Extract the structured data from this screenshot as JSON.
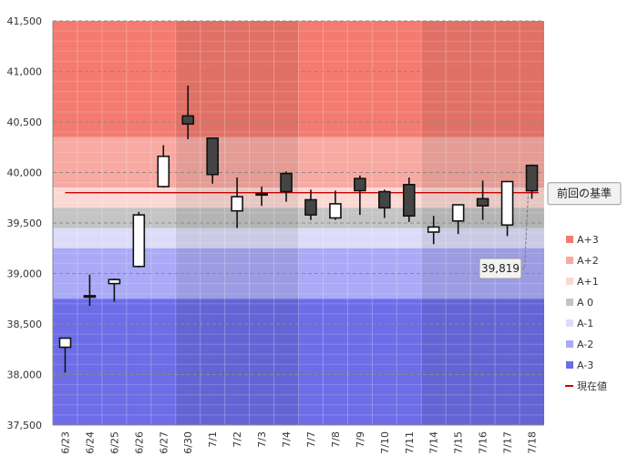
{
  "chart_data": {
    "type": "candlestick",
    "title": "",
    "xlabel": "",
    "ylabel": "",
    "ylim": [
      37500,
      41500
    ],
    "yticks": [
      37500,
      38000,
      38500,
      39000,
      39500,
      40000,
      40500,
      41000,
      41500
    ],
    "ytick_labels": [
      "37,500",
      "38,000",
      "38,500",
      "39,000",
      "39,500",
      "40,000",
      "40,500",
      "41,000",
      "41,500"
    ],
    "categories": [
      "6/23",
      "6/24",
      "6/25",
      "6/26",
      "6/27",
      "6/30",
      "7/1",
      "7/2",
      "7/3",
      "7/4",
      "7/7",
      "7/8",
      "7/9",
      "7/10",
      "7/11",
      "7/14",
      "7/15",
      "7/16",
      "7/17",
      "7/18"
    ],
    "candles": [
      {
        "date": "6/23",
        "open": 38270,
        "high": 38360,
        "low": 38020,
        "close": 38360
      },
      {
        "date": "6/24",
        "open": 38770,
        "high": 38990,
        "low": 38680,
        "close": 38780
      },
      {
        "date": "6/25",
        "open": 38900,
        "high": 38950,
        "low": 38720,
        "close": 38940
      },
      {
        "date": "6/26",
        "open": 39070,
        "high": 39610,
        "low": 39060,
        "close": 39580
      },
      {
        "date": "6/27",
        "open": 39860,
        "high": 40270,
        "low": 39850,
        "close": 40160
      },
      {
        "date": "6/30",
        "open": 40560,
        "high": 40860,
        "low": 40330,
        "close": 40480
      },
      {
        "date": "7/1",
        "open": 40340,
        "high": 40340,
        "low": 39890,
        "close": 39980
      },
      {
        "date": "7/2",
        "open": 39620,
        "high": 39950,
        "low": 39450,
        "close": 39760
      },
      {
        "date": "7/3",
        "open": 39790,
        "high": 39860,
        "low": 39670,
        "close": 39780
      },
      {
        "date": "7/4",
        "open": 39990,
        "high": 40010,
        "low": 39710,
        "close": 39810
      },
      {
        "date": "7/7",
        "open": 39730,
        "high": 39830,
        "low": 39530,
        "close": 39580
      },
      {
        "date": "7/8",
        "open": 39550,
        "high": 39820,
        "low": 39530,
        "close": 39690
      },
      {
        "date": "7/9",
        "open": 39940,
        "high": 39970,
        "low": 39580,
        "close": 39820
      },
      {
        "date": "7/10",
        "open": 39810,
        "high": 39830,
        "low": 39550,
        "close": 39650
      },
      {
        "date": "7/11",
        "open": 39880,
        "high": 39950,
        "low": 39510,
        "close": 39570
      },
      {
        "date": "7/14",
        "open": 39410,
        "high": 39570,
        "low": 39290,
        "close": 39460
      },
      {
        "date": "7/15",
        "open": 39520,
        "high": 39680,
        "low": 39390,
        "close": 39680
      },
      {
        "date": "7/16",
        "open": 39740,
        "high": 39920,
        "low": 39530,
        "close": 39670
      },
      {
        "date": "7/17",
        "open": 39480,
        "high": 39910,
        "low": 39370,
        "close": 39910
      },
      {
        "date": "7/18",
        "open": 40070,
        "high": 40080,
        "low": 39740,
        "close": 39819
      }
    ],
    "bands": [
      {
        "name": "A+3",
        "from": 40350,
        "to": 41500,
        "color": "#f47b6f"
      },
      {
        "name": "A+2",
        "from": 39850,
        "to": 40350,
        "color": "#f8aaa2"
      },
      {
        "name": "A+1",
        "from": 39650,
        "to": 39850,
        "color": "#fcd8d4"
      },
      {
        "name": "A 0",
        "from": 39450,
        "to": 39650,
        "color": "#c4c4c4"
      },
      {
        "name": "A-1",
        "from": 39250,
        "to": 39450,
        "color": "#dcdcf8"
      },
      {
        "name": "A-2",
        "from": 38750,
        "to": 39250,
        "color": "#aaaaf6"
      },
      {
        "name": "A-3",
        "from": 37500,
        "to": 38750,
        "color": "#6d6de8"
      }
    ],
    "week_shading_groups": [
      [
        0,
        4
      ],
      [
        5,
        9
      ],
      [
        10,
        14
      ],
      [
        15,
        19
      ]
    ],
    "reference_line": {
      "label": "前回の基準",
      "value": 39800,
      "color": "#cc0000"
    },
    "current_value": {
      "label": "現在値",
      "value": 39819,
      "value_label": "39,819",
      "color": "#cc0000"
    },
    "legend": [
      {
        "label": "A+3",
        "color": "#f47b6f",
        "kind": "box"
      },
      {
        "label": "A+2",
        "color": "#f8aaa2",
        "kind": "box"
      },
      {
        "label": "A+1",
        "color": "#fcd8d4",
        "kind": "box"
      },
      {
        "label": "A 0",
        "color": "#c4c4c4",
        "kind": "box"
      },
      {
        "label": "A-1",
        "color": "#dcdcf8",
        "kind": "box"
      },
      {
        "label": "A-2",
        "color": "#aaaaf6",
        "kind": "box"
      },
      {
        "label": "A-3",
        "color": "#6d6de8",
        "kind": "box"
      },
      {
        "label": "現在値",
        "color": "#cc0000",
        "kind": "line"
      }
    ],
    "legend_position": "right"
  }
}
